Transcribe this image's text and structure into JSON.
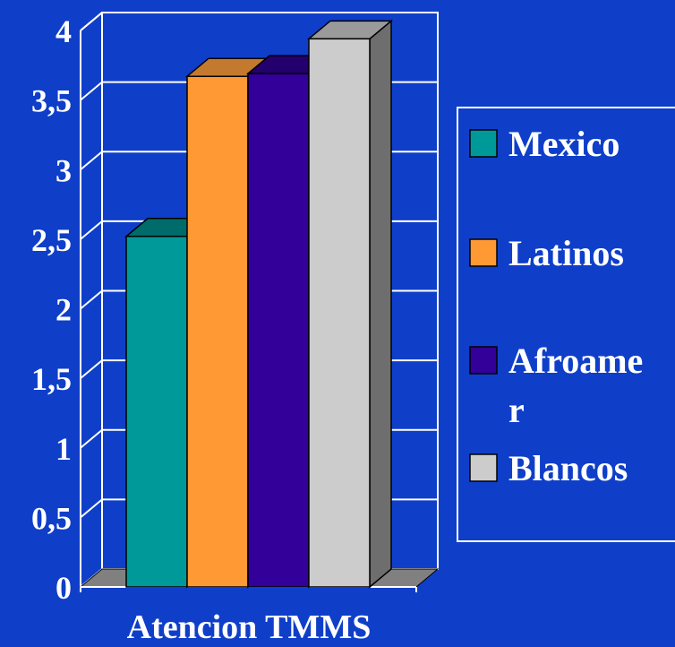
{
  "chart_data": {
    "type": "bar",
    "title": "",
    "xlabel": "Atencion TMMS",
    "ylabel": "",
    "categories": [
      "Atencion TMMS"
    ],
    "ylim": [
      0,
      4
    ],
    "yticks": [
      "0",
      "0,5",
      "1",
      "1,5",
      "2",
      "2,5",
      "3",
      "3,5",
      "4"
    ],
    "grid": true,
    "style": "3d",
    "legend_position": "right",
    "series": [
      {
        "name": "Mexico",
        "legend_label": [
          "Mexico"
        ],
        "values": [
          2.52
        ],
        "color": "#009999",
        "top_color": "#006b6b",
        "side_color": "#005555"
      },
      {
        "name": "Latinos",
        "legend_label": [
          "Latinos"
        ],
        "values": [
          3.67
        ],
        "color": "#ff9933",
        "top_color": "#c47a2e",
        "side_color": "#a8662a"
      },
      {
        "name": "Afroamer",
        "legend_label": [
          "Afroame",
          "r"
        ],
        "values": [
          3.69
        ],
        "color": "#330099",
        "top_color": "#24006e",
        "side_color": "#1e0060"
      },
      {
        "name": "Blancos",
        "legend_label": [
          "Blancos"
        ],
        "values": [
          3.94
        ],
        "color": "#cccccc",
        "top_color": "#9a9a9a",
        "side_color": "#6e6e6e"
      }
    ],
    "colors": {
      "background": "#0f3fc9",
      "grid": "#ffffff",
      "floor": "#808080",
      "text": "#ffffff"
    }
  }
}
